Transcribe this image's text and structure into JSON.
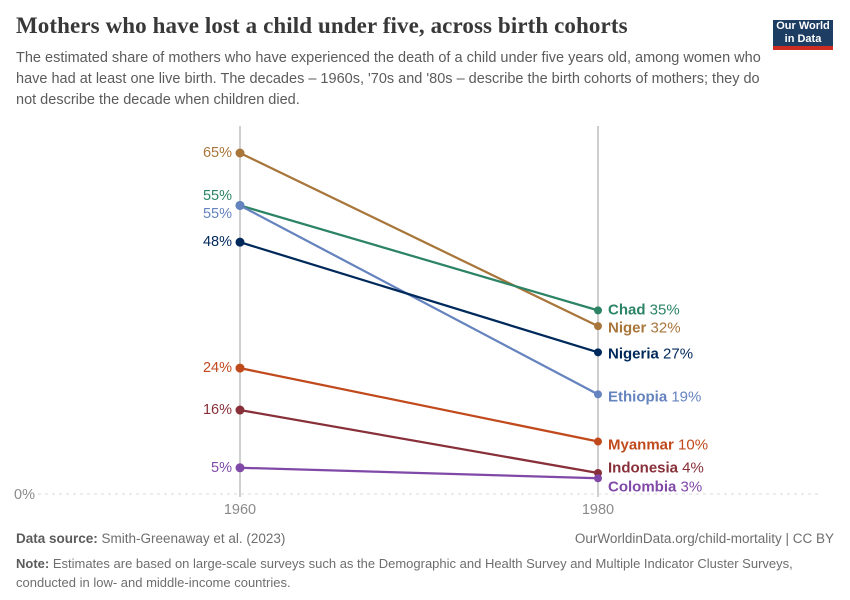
{
  "header": {
    "title": "Mothers who have lost a child under five, across birth cohorts",
    "subtitle": "The estimated share of mothers who have experienced the death of a child under five years old, among women who have had at least one live birth. The decades – 1960s, '70s and '80s – describe the birth cohorts of mothers; they do not describe the decade when children died."
  },
  "logo": {
    "line1": "Our World",
    "line2": "in Data",
    "bg_color": "#1D3D63",
    "bar_color": "#CE2B22"
  },
  "chart_data": {
    "type": "line",
    "subtype": "slope",
    "title": "Mothers who have lost a child under five, across birth cohorts",
    "x": [
      "1960",
      "1980"
    ],
    "xlabel": "",
    "ylabel": "",
    "ylim": [
      0,
      68
    ],
    "y_zero_label": "0%",
    "grid": "zero-line-only",
    "legend_position": "end-of-line-labels",
    "series": [
      {
        "name": "Niger",
        "color": "#A8763B",
        "values": [
          65,
          32
        ],
        "start_dy": 0,
        "end_dy": 2
      },
      {
        "name": "Chad",
        "color": "#2C8465",
        "values": [
          55,
          35
        ],
        "start_dy": -9,
        "end_dy": 0
      },
      {
        "name": "Ethiopia",
        "color": "#6583BE",
        "values": [
          55,
          19
        ],
        "start_dy": 9,
        "end_dy": 3
      },
      {
        "name": "Nigeria",
        "color": "#00295B",
        "values": [
          48,
          27
        ],
        "start_dy": 0,
        "end_dy": 2
      },
      {
        "name": "Myanmar",
        "color": "#C14A1D",
        "values": [
          24,
          10
        ],
        "start_dy": 0,
        "end_dy": 3
      },
      {
        "name": "Indonesia",
        "color": "#883039",
        "values": [
          16,
          4
        ],
        "start_dy": 0,
        "end_dy": -5
      },
      {
        "name": "Colombia",
        "color": "#8049A8",
        "values": [
          5,
          3
        ],
        "start_dy": 0,
        "end_dy": 9
      }
    ]
  },
  "footer": {
    "source_label": "Data source:",
    "source_text": " Smith-Greenaway et al. (2023)",
    "link": "OurWorldinData.org/child-mortality | CC BY",
    "note_label": "Note:",
    "note_text": " Estimates are based on large-scale surveys such as the Demographic and Health Survey and Multiple Indicator Cluster Surveys, conducted in low- and middle-income countries."
  }
}
